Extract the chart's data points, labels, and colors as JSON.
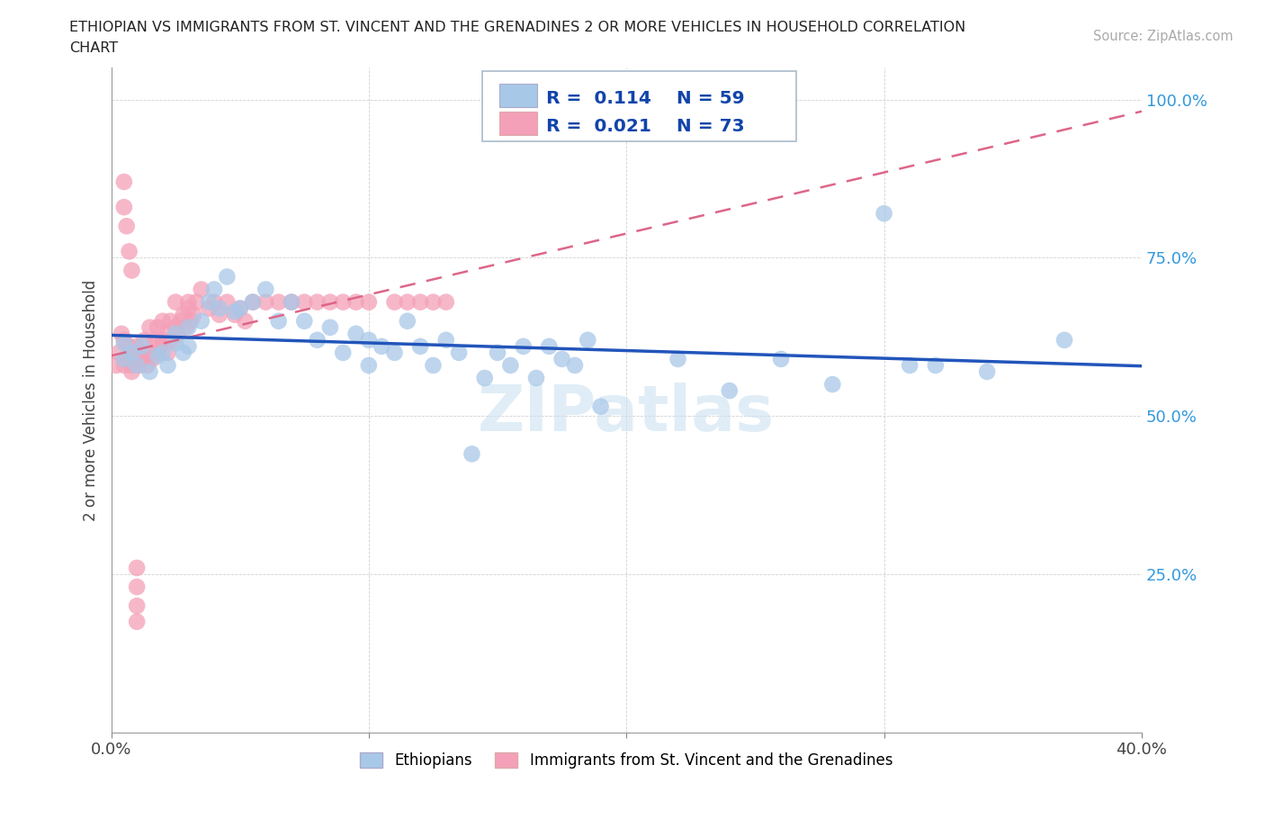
{
  "title_line1": "ETHIOPIAN VS IMMIGRANTS FROM ST. VINCENT AND THE GRENADINES 2 OR MORE VEHICLES IN HOUSEHOLD CORRELATION",
  "title_line2": "CHART",
  "source": "Source: ZipAtlas.com",
  "ylabel": "2 or more Vehicles in Household",
  "xlim": [
    0.0,
    0.4
  ],
  "ylim": [
    0.0,
    1.05
  ],
  "blue_R": 0.114,
  "blue_N": 59,
  "pink_R": 0.021,
  "pink_N": 73,
  "blue_color": "#a8c8e8",
  "pink_color": "#f4a0b8",
  "blue_line_color": "#2255bb",
  "pink_line_color": "#dd6688",
  "legend_label_blue": "Ethiopians",
  "legend_label_pink": "Immigrants from St. Vincent and the Grenadines",
  "blue_x": [
    0.005,
    0.005,
    0.008,
    0.01,
    0.012,
    0.015,
    0.018,
    0.02,
    0.022,
    0.025,
    0.025,
    0.028,
    0.03,
    0.03,
    0.035,
    0.038,
    0.04,
    0.042,
    0.045,
    0.048,
    0.05,
    0.055,
    0.06,
    0.065,
    0.07,
    0.075,
    0.08,
    0.085,
    0.09,
    0.095,
    0.1,
    0.1,
    0.105,
    0.11,
    0.115,
    0.12,
    0.125,
    0.13,
    0.135,
    0.14,
    0.145,
    0.15,
    0.155,
    0.16,
    0.165,
    0.17,
    0.175,
    0.18,
    0.185,
    0.19,
    0.22,
    0.24,
    0.26,
    0.28,
    0.3,
    0.31,
    0.32,
    0.34,
    0.37
  ],
  "blue_y": [
    0.59,
    0.615,
    0.6,
    0.58,
    0.61,
    0.57,
    0.595,
    0.6,
    0.58,
    0.63,
    0.615,
    0.6,
    0.64,
    0.61,
    0.65,
    0.68,
    0.7,
    0.67,
    0.72,
    0.665,
    0.67,
    0.68,
    0.7,
    0.65,
    0.68,
    0.65,
    0.62,
    0.64,
    0.6,
    0.63,
    0.58,
    0.62,
    0.61,
    0.6,
    0.65,
    0.61,
    0.58,
    0.62,
    0.6,
    0.44,
    0.56,
    0.6,
    0.58,
    0.61,
    0.56,
    0.61,
    0.59,
    0.58,
    0.62,
    0.515,
    0.59,
    0.54,
    0.59,
    0.55,
    0.82,
    0.58,
    0.58,
    0.57,
    0.62
  ],
  "pink_x": [
    0.002,
    0.003,
    0.004,
    0.005,
    0.005,
    0.006,
    0.007,
    0.008,
    0.008,
    0.009,
    0.01,
    0.01,
    0.011,
    0.012,
    0.013,
    0.013,
    0.014,
    0.015,
    0.015,
    0.016,
    0.017,
    0.018,
    0.018,
    0.019,
    0.02,
    0.02,
    0.021,
    0.022,
    0.023,
    0.024,
    0.025,
    0.025,
    0.026,
    0.027,
    0.028,
    0.029,
    0.03,
    0.03,
    0.031,
    0.032,
    0.033,
    0.035,
    0.038,
    0.04,
    0.042,
    0.045,
    0.048,
    0.05,
    0.052,
    0.055,
    0.06,
    0.065,
    0.07,
    0.075,
    0.08,
    0.085,
    0.09,
    0.095,
    0.1,
    0.11,
    0.115,
    0.12,
    0.125,
    0.13,
    0.005,
    0.005,
    0.006,
    0.007,
    0.008,
    0.01,
    0.01,
    0.01,
    0.01
  ],
  "pink_y": [
    0.58,
    0.6,
    0.63,
    0.58,
    0.62,
    0.59,
    0.61,
    0.58,
    0.57,
    0.6,
    0.59,
    0.61,
    0.58,
    0.6,
    0.62,
    0.59,
    0.58,
    0.6,
    0.64,
    0.59,
    0.62,
    0.6,
    0.64,
    0.61,
    0.62,
    0.65,
    0.63,
    0.6,
    0.65,
    0.62,
    0.64,
    0.68,
    0.63,
    0.65,
    0.66,
    0.64,
    0.67,
    0.68,
    0.65,
    0.66,
    0.68,
    0.7,
    0.67,
    0.68,
    0.66,
    0.68,
    0.66,
    0.67,
    0.65,
    0.68,
    0.68,
    0.68,
    0.68,
    0.68,
    0.68,
    0.68,
    0.68,
    0.68,
    0.68,
    0.68,
    0.68,
    0.68,
    0.68,
    0.68,
    0.87,
    0.83,
    0.8,
    0.76,
    0.73,
    0.175,
    0.2,
    0.23,
    0.26
  ]
}
